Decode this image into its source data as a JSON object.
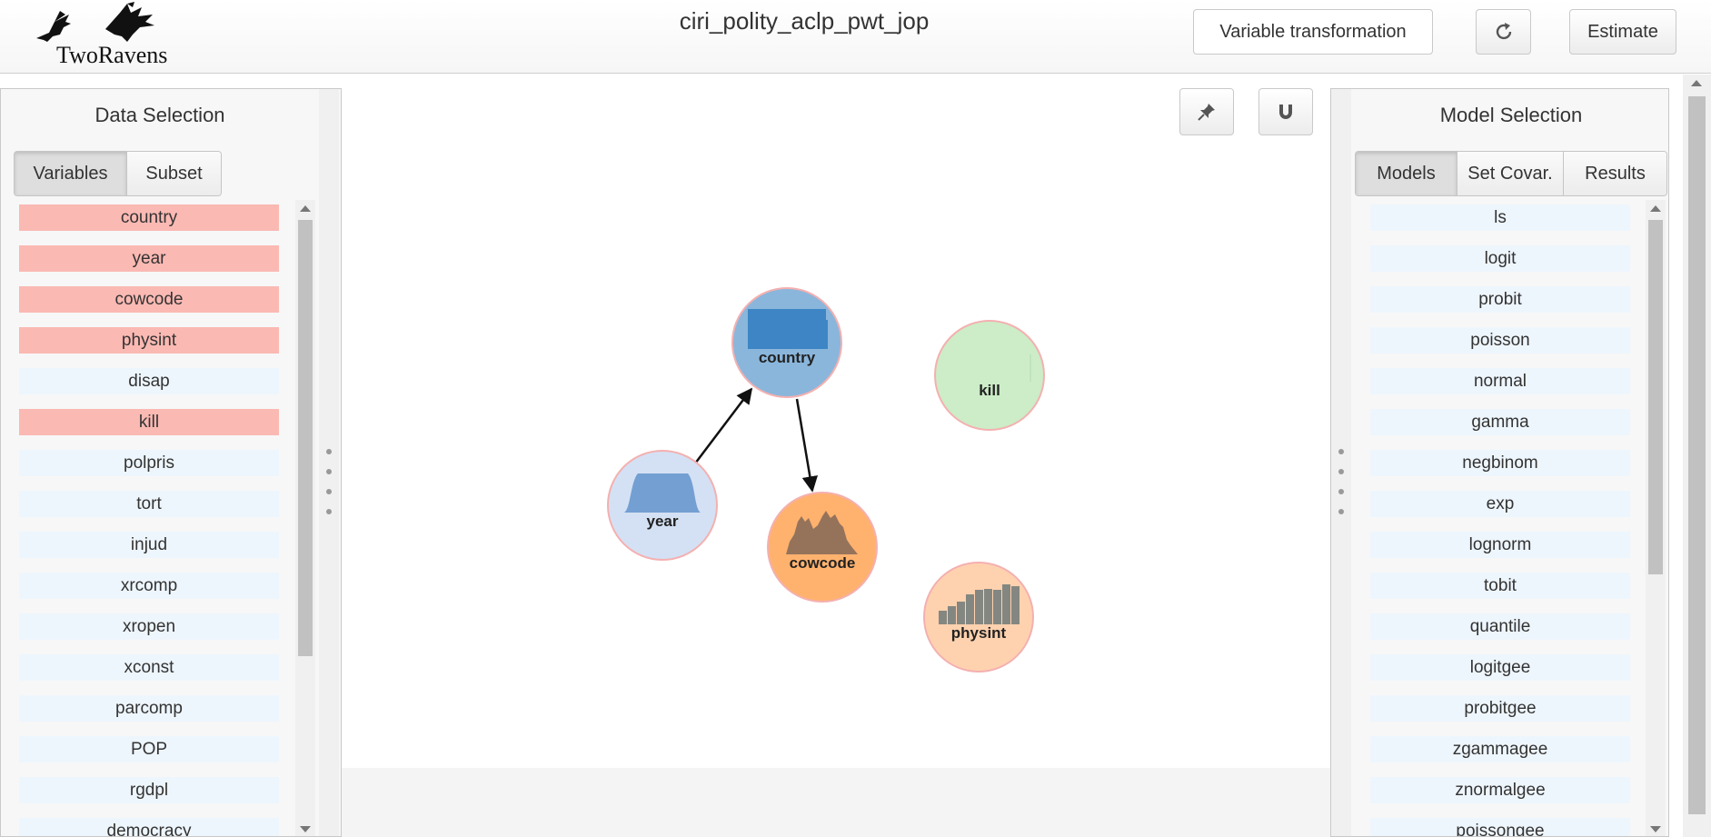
{
  "header": {
    "logo_text": "TwoRavens",
    "dataset_title": "ciri_polity_aclp_pwt_jop",
    "transform_label": "Variable transformation",
    "estimate_label": "Estimate",
    "reset_icon": "refresh-icon"
  },
  "canvas_tools": {
    "pin_icon": "pin-icon",
    "magnet_icon": "magnet-icon"
  },
  "left_panel": {
    "title": "Data Selection",
    "tabs": [
      {
        "label": "Variables",
        "active": true
      },
      {
        "label": "Subset",
        "active": false
      }
    ],
    "items": [
      {
        "label": "country",
        "selected": true
      },
      {
        "label": "year",
        "selected": true
      },
      {
        "label": "cowcode",
        "selected": true
      },
      {
        "label": "physint",
        "selected": true
      },
      {
        "label": "disap",
        "selected": false
      },
      {
        "label": "kill",
        "selected": true
      },
      {
        "label": "polpris",
        "selected": false
      },
      {
        "label": "tort",
        "selected": false
      },
      {
        "label": "injud",
        "selected": false
      },
      {
        "label": "xrcomp",
        "selected": false
      },
      {
        "label": "xropen",
        "selected": false
      },
      {
        "label": "xconst",
        "selected": false
      },
      {
        "label": "parcomp",
        "selected": false
      },
      {
        "label": "POP",
        "selected": false
      },
      {
        "label": "rgdpl",
        "selected": false
      },
      {
        "label": "democracy",
        "selected": false
      }
    ]
  },
  "right_panel": {
    "title": "Model Selection",
    "tabs": [
      {
        "label": "Models",
        "active": true
      },
      {
        "label": "Set Covar.",
        "active": false
      },
      {
        "label": "Results",
        "active": false
      }
    ],
    "items": [
      "ls",
      "logit",
      "probit",
      "poisson",
      "normal",
      "gamma",
      "negbinom",
      "exp",
      "lognorm",
      "tobit",
      "quantile",
      "logitgee",
      "probitgee",
      "zgammagee",
      "znormalgee",
      "poissongee"
    ]
  },
  "graph": {
    "nodes": [
      {
        "label": "country",
        "fill": "#8ab6dc",
        "plot": "country-bar-plot"
      },
      {
        "label": "kill",
        "fill": "#ccedc7",
        "plot": "kill-empty-plot"
      },
      {
        "label": "year",
        "fill": "#d4e1f4",
        "plot": "year-density-plot"
      },
      {
        "label": "cowcode",
        "fill": "#ffb26e",
        "plot": "cowcode-density-plot"
      },
      {
        "label": "physint",
        "fill": "#ffd2af",
        "plot": "physint-bar-plot"
      }
    ],
    "edges": [
      {
        "from": "year",
        "to": "country"
      },
      {
        "from": "country",
        "to": "cowcode"
      }
    ]
  },
  "colors": {
    "selected_item": "#fbb9b3",
    "unselected_item": "#eef6fd",
    "node_border": "#f4b0b0",
    "edge": "#111111"
  }
}
